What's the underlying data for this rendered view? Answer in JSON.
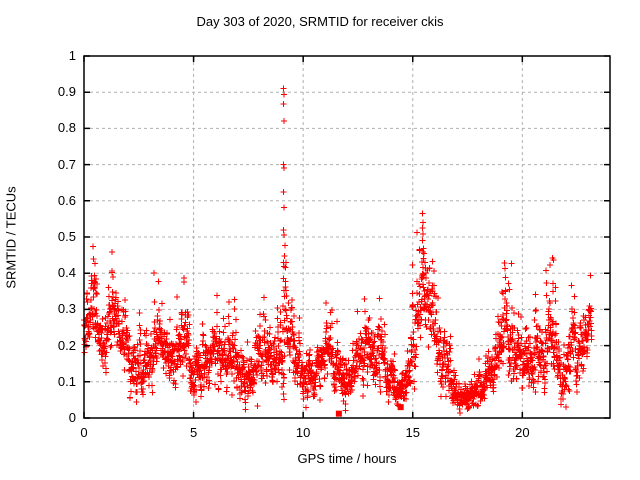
{
  "chart_data": {
    "type": "scatter",
    "title": "Day 303 of 2020, SRMTID for receiver ckis",
    "xlabel": "GPS time / hours",
    "ylabel": "SRMTID / TECUs",
    "xlim": [
      0,
      24
    ],
    "ylim": [
      0,
      1
    ],
    "x_ticks": [
      {
        "v": 0,
        "label": "0"
      },
      {
        "v": 5,
        "label": "5"
      },
      {
        "v": 10,
        "label": "10"
      },
      {
        "v": 15,
        "label": "15"
      },
      {
        "v": 20,
        "label": "20"
      }
    ],
    "y_ticks": [
      {
        "v": 0,
        "label": "0"
      },
      {
        "v": 0.1,
        "label": "0.1"
      },
      {
        "v": 0.2,
        "label": "0.2"
      },
      {
        "v": 0.3,
        "label": "0.3"
      },
      {
        "v": 0.4,
        "label": "0.4"
      },
      {
        "v": 0.5,
        "label": "0.5"
      },
      {
        "v": 0.6,
        "label": "0.6"
      },
      {
        "v": 0.7,
        "label": "0.7"
      },
      {
        "v": 0.8,
        "label": "0.8"
      },
      {
        "v": 0.9,
        "label": "0.9"
      },
      {
        "v": 1,
        "label": "1"
      }
    ],
    "grid": true,
    "legend": "none",
    "marker": "plus",
    "marker_color": "#ff0000",
    "grid_color": "#b0b0b0",
    "axis_color": "#000000",
    "t_start": 0.0,
    "t_end": 23.17,
    "points_per_hour": 120,
    "seed": 20,
    "envelope": [
      [
        0.0,
        0.24,
        0.14
      ],
      [
        0.4,
        0.3,
        0.14
      ],
      [
        0.8,
        0.2,
        0.12
      ],
      [
        1.1,
        0.24,
        0.14
      ],
      [
        1.35,
        0.3,
        0.16
      ],
      [
        1.7,
        0.22,
        0.12
      ],
      [
        2.2,
        0.15,
        0.12
      ],
      [
        2.7,
        0.12,
        0.1
      ],
      [
        3.1,
        0.18,
        0.14
      ],
      [
        3.5,
        0.22,
        0.14
      ],
      [
        3.9,
        0.18,
        0.12
      ],
      [
        4.2,
        0.15,
        0.12
      ],
      [
        4.5,
        0.2,
        0.14
      ],
      [
        4.9,
        0.12,
        0.1
      ],
      [
        5.3,
        0.13,
        0.11
      ],
      [
        5.8,
        0.16,
        0.13
      ],
      [
        6.2,
        0.18,
        0.14
      ],
      [
        6.7,
        0.18,
        0.14
      ],
      [
        7.1,
        0.14,
        0.12
      ],
      [
        7.5,
        0.1,
        0.09
      ],
      [
        7.9,
        0.15,
        0.13
      ],
      [
        8.2,
        0.17,
        0.13
      ],
      [
        8.6,
        0.13,
        0.11
      ],
      [
        9.0,
        0.16,
        0.15
      ],
      [
        9.2,
        0.22,
        0.18
      ],
      [
        9.6,
        0.2,
        0.16
      ],
      [
        10.0,
        0.12,
        0.1
      ],
      [
        10.4,
        0.1,
        0.08
      ],
      [
        10.8,
        0.13,
        0.11
      ],
      [
        11.1,
        0.17,
        0.13
      ],
      [
        11.5,
        0.12,
        0.1
      ],
      [
        12.0,
        0.1,
        0.09
      ],
      [
        12.4,
        0.13,
        0.11
      ],
      [
        12.8,
        0.19,
        0.15
      ],
      [
        13.2,
        0.2,
        0.16
      ],
      [
        13.6,
        0.15,
        0.12
      ],
      [
        14.0,
        0.11,
        0.1
      ],
      [
        14.45,
        0.06,
        0.06
      ],
      [
        14.8,
        0.13,
        0.12
      ],
      [
        15.2,
        0.26,
        0.2
      ],
      [
        15.5,
        0.36,
        0.22
      ],
      [
        15.8,
        0.28,
        0.2
      ],
      [
        16.1,
        0.22,
        0.16
      ],
      [
        16.5,
        0.15,
        0.12
      ],
      [
        16.9,
        0.08,
        0.08
      ],
      [
        17.3,
        0.05,
        0.05
      ],
      [
        17.7,
        0.06,
        0.06
      ],
      [
        18.1,
        0.09,
        0.08
      ],
      [
        18.5,
        0.13,
        0.1
      ],
      [
        18.9,
        0.17,
        0.13
      ],
      [
        19.3,
        0.23,
        0.16
      ],
      [
        19.7,
        0.18,
        0.14
      ],
      [
        20.1,
        0.15,
        0.12
      ],
      [
        20.5,
        0.16,
        0.12
      ],
      [
        20.9,
        0.18,
        0.14
      ],
      [
        21.3,
        0.22,
        0.16
      ],
      [
        21.6,
        0.15,
        0.12
      ],
      [
        22.0,
        0.13,
        0.11
      ],
      [
        22.35,
        0.21,
        0.15
      ],
      [
        22.7,
        0.17,
        0.12
      ],
      [
        23.0,
        0.22,
        0.12
      ],
      [
        23.17,
        0.24,
        0.1
      ]
    ],
    "outlier_points": [
      [
        9.1,
        0.91
      ],
      [
        9.12,
        0.893
      ],
      [
        9.11,
        0.868
      ],
      [
        9.13,
        0.82
      ],
      [
        9.105,
        0.7
      ],
      [
        9.12,
        0.69
      ],
      [
        9.11,
        0.625
      ],
      [
        9.135,
        0.582
      ],
      [
        9.1,
        0.52
      ],
      [
        9.125,
        0.505
      ],
      [
        9.14,
        0.447
      ],
      [
        9.105,
        0.43
      ],
      [
        9.12,
        0.418
      ],
      [
        9.11,
        0.385
      ],
      [
        9.13,
        0.352
      ],
      [
        9.15,
        0.335
      ],
      [
        9.09,
        0.31
      ],
      [
        9.16,
        0.3
      ],
      [
        15.44,
        0.565
      ],
      [
        15.46,
        0.54
      ],
      [
        15.45,
        0.525
      ],
      [
        15.47,
        0.508
      ],
      [
        15.44,
        0.49
      ],
      [
        15.48,
        0.468
      ],
      [
        15.52,
        0.455
      ],
      [
        15.5,
        0.44
      ],
      [
        15.55,
        0.43
      ],
      [
        15.58,
        0.415
      ],
      [
        15.9,
        0.432
      ],
      [
        15.6,
        0.4
      ],
      [
        21.38,
        0.442
      ],
      [
        21.42,
        0.436
      ],
      [
        21.4,
        0.372
      ],
      [
        21.39,
        0.35
      ],
      [
        19.38,
        0.372
      ],
      [
        19.42,
        0.355
      ],
      [
        0.42,
        0.372
      ],
      [
        0.46,
        0.36
      ],
      [
        1.28,
        0.402
      ],
      [
        1.33,
        0.39
      ],
      [
        22.38,
        0.335
      ]
    ],
    "square_points": [
      [
        11.63,
        0.012
      ],
      [
        14.45,
        0.03
      ]
    ]
  }
}
